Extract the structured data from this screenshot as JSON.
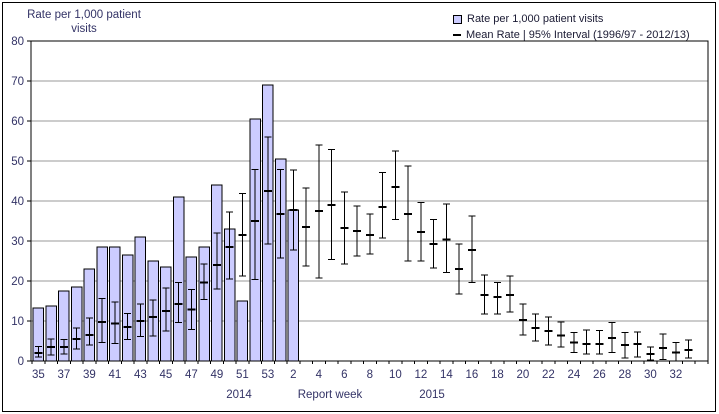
{
  "header": {
    "y_axis_title_line1": "Rate per 1,000  patient",
    "y_axis_title_line2": "visits"
  },
  "legend": {
    "bar_label": "Rate per 1,000 patient visits",
    "mean_label": "Mean Rate | 95% Interval (1996/97 - 2012/13)"
  },
  "x_axis": {
    "title": "Report week",
    "year_left": "2014",
    "year_right": "2015"
  },
  "colors": {
    "bar_fill": "#ccccff",
    "bar_border": "#000000",
    "error_bar": "#000000",
    "grid": "#999999",
    "axis": "#000000",
    "text": "#333366"
  },
  "chart_data": {
    "type": "bar",
    "title": "Rate per 1,000 patient visits",
    "xlabel": "Report week",
    "ylabel": "Rate per 1,000 patient visits",
    "ylim": [
      0,
      80
    ],
    "ytick_step": 10,
    "grid": true,
    "legend_position": "top-right",
    "label_every": 2,
    "series": [
      {
        "name": "Rate per 1,000 patient visits",
        "style": "bar"
      },
      {
        "name": "Mean Rate | 95% Interval (1996/97 - 2012/13)",
        "style": "errorbar"
      }
    ],
    "weeks": [
      {
        "year": 2014,
        "week": 35,
        "rate": 13.3,
        "mean": 2.0,
        "ci_low": 1.0,
        "ci_high": 3.6
      },
      {
        "year": 2014,
        "week": 36,
        "rate": 13.8,
        "mean": 3.5,
        "ci_low": 1.5,
        "ci_high": 5.5
      },
      {
        "year": 2014,
        "week": 37,
        "rate": 17.5,
        "mean": 3.5,
        "ci_low": 1.7,
        "ci_high": 5.4
      },
      {
        "year": 2014,
        "week": 38,
        "rate": 18.5,
        "mean": 5.5,
        "ci_low": 3.0,
        "ci_high": 8.3
      },
      {
        "year": 2014,
        "week": 39,
        "rate": 23.0,
        "mean": 6.5,
        "ci_low": 4.0,
        "ci_high": 10.8
      },
      {
        "year": 2014,
        "week": 40,
        "rate": 28.5,
        "mean": 9.8,
        "ci_low": 4.6,
        "ci_high": 15.6
      },
      {
        "year": 2014,
        "week": 41,
        "rate": 28.5,
        "mean": 9.4,
        "ci_low": 4.4,
        "ci_high": 14.8
      },
      {
        "year": 2014,
        "week": 42,
        "rate": 26.5,
        "mean": 8.5,
        "ci_low": 5.4,
        "ci_high": 11.9
      },
      {
        "year": 2014,
        "week": 43,
        "rate": 31.0,
        "mean": 10.0,
        "ci_low": 6.1,
        "ci_high": 14.2
      },
      {
        "year": 2014,
        "week": 44,
        "rate": 25.0,
        "mean": 11.0,
        "ci_low": 6.3,
        "ci_high": 15.3
      },
      {
        "year": 2014,
        "week": 45,
        "rate": 23.5,
        "mean": 12.5,
        "ci_low": 7.5,
        "ci_high": 18.2
      },
      {
        "year": 2014,
        "week": 46,
        "rate": 41.0,
        "mean": 14.3,
        "ci_low": 9.6,
        "ci_high": 19.6
      },
      {
        "year": 2014,
        "week": 47,
        "rate": 26.0,
        "mean": 12.9,
        "ci_low": 7.9,
        "ci_high": 17.9
      },
      {
        "year": 2014,
        "week": 48,
        "rate": 28.5,
        "mean": 19.6,
        "ci_low": 15.4,
        "ci_high": 24.2
      },
      {
        "year": 2014,
        "week": 49,
        "rate": 44.0,
        "mean": 24.0,
        "ci_low": 18.0,
        "ci_high": 32.0
      },
      {
        "year": 2014,
        "week": 50,
        "rate": 33.0,
        "mean": 28.5,
        "ci_low": 20.5,
        "ci_high": 37.2
      },
      {
        "year": 2014,
        "week": 51,
        "rate": 15.0,
        "mean": 31.5,
        "ci_low": 21.2,
        "ci_high": 41.9
      },
      {
        "year": 2014,
        "week": 52,
        "rate": 60.5,
        "mean": 35.0,
        "ci_low": 20.4,
        "ci_high": 47.9
      },
      {
        "year": 2014,
        "week": 53,
        "rate": 69.0,
        "mean": 42.5,
        "ci_low": 29.3,
        "ci_high": 56.0
      },
      {
        "year": 2015,
        "week": 1,
        "rate": 50.5,
        "mean": 36.7,
        "ci_low": 25.8,
        "ci_high": 47.9
      },
      {
        "year": 2015,
        "week": 2,
        "rate": 37.7,
        "mean": 37.7,
        "ci_low": 27.7,
        "ci_high": 47.8
      },
      {
        "year": 2015,
        "week": 3,
        "rate": null,
        "mean": 33.5,
        "ci_low": 23.8,
        "ci_high": 43.3
      },
      {
        "year": 2015,
        "week": 4,
        "rate": null,
        "mean": 37.5,
        "ci_low": 20.8,
        "ci_high": 54.0
      },
      {
        "year": 2015,
        "week": 5,
        "rate": null,
        "mean": 39.0,
        "ci_low": 25.4,
        "ci_high": 52.9
      },
      {
        "year": 2015,
        "week": 6,
        "rate": null,
        "mean": 33.2,
        "ci_low": 24.2,
        "ci_high": 42.3
      },
      {
        "year": 2015,
        "week": 7,
        "rate": null,
        "mean": 32.5,
        "ci_low": 26.2,
        "ci_high": 38.8
      },
      {
        "year": 2015,
        "week": 8,
        "rate": null,
        "mean": 31.5,
        "ci_low": 26.7,
        "ci_high": 36.7
      },
      {
        "year": 2015,
        "week": 9,
        "rate": null,
        "mean": 38.5,
        "ci_low": 30.8,
        "ci_high": 47.1
      },
      {
        "year": 2015,
        "week": 10,
        "rate": null,
        "mean": 43.5,
        "ci_low": 35.4,
        "ci_high": 52.5
      },
      {
        "year": 2015,
        "week": 11,
        "rate": null,
        "mean": 36.7,
        "ci_low": 25.0,
        "ci_high": 48.8
      },
      {
        "year": 2015,
        "week": 12,
        "rate": null,
        "mean": 32.2,
        "ci_low": 25.0,
        "ci_high": 39.6
      },
      {
        "year": 2015,
        "week": 13,
        "rate": null,
        "mean": 29.3,
        "ci_low": 23.3,
        "ci_high": 35.4
      },
      {
        "year": 2015,
        "week": 14,
        "rate": null,
        "mean": 30.4,
        "ci_low": 22.1,
        "ci_high": 39.2
      },
      {
        "year": 2015,
        "week": 15,
        "rate": null,
        "mean": 23.0,
        "ci_low": 16.7,
        "ci_high": 29.2
      },
      {
        "year": 2015,
        "week": 16,
        "rate": null,
        "mean": 27.8,
        "ci_low": 19.6,
        "ci_high": 36.2
      },
      {
        "year": 2015,
        "week": 17,
        "rate": null,
        "mean": 16.5,
        "ci_low": 11.7,
        "ci_high": 21.5
      },
      {
        "year": 2015,
        "week": 18,
        "rate": null,
        "mean": 16.0,
        "ci_low": 11.7,
        "ci_high": 19.6
      },
      {
        "year": 2015,
        "week": 19,
        "rate": null,
        "mean": 16.5,
        "ci_low": 12.2,
        "ci_high": 21.2
      },
      {
        "year": 2015,
        "week": 20,
        "rate": null,
        "mean": 10.2,
        "ci_low": 6.5,
        "ci_high": 14.2
      },
      {
        "year": 2015,
        "week": 21,
        "rate": null,
        "mean": 8.2,
        "ci_low": 5.0,
        "ci_high": 11.8
      },
      {
        "year": 2015,
        "week": 22,
        "rate": null,
        "mean": 7.5,
        "ci_low": 4.0,
        "ci_high": 11.0
      },
      {
        "year": 2015,
        "week": 23,
        "rate": null,
        "mean": 6.4,
        "ci_low": 3.5,
        "ci_high": 9.8
      },
      {
        "year": 2015,
        "week": 24,
        "rate": null,
        "mean": 4.6,
        "ci_low": 2.1,
        "ci_high": 7.1
      },
      {
        "year": 2015,
        "week": 25,
        "rate": null,
        "mean": 4.3,
        "ci_low": 1.7,
        "ci_high": 7.7
      },
      {
        "year": 2015,
        "week": 26,
        "rate": null,
        "mean": 4.3,
        "ci_low": 1.8,
        "ci_high": 7.6
      },
      {
        "year": 2015,
        "week": 27,
        "rate": null,
        "mean": 5.8,
        "ci_low": 2.1,
        "ci_high": 9.6
      },
      {
        "year": 2015,
        "week": 28,
        "rate": null,
        "mean": 4.0,
        "ci_low": 0.8,
        "ci_high": 7.1
      },
      {
        "year": 2015,
        "week": 29,
        "rate": null,
        "mean": 4.2,
        "ci_low": 1.0,
        "ci_high": 7.3
      },
      {
        "year": 2015,
        "week": 30,
        "rate": null,
        "mean": 1.8,
        "ci_low": 0.3,
        "ci_high": 3.5
      },
      {
        "year": 2015,
        "week": 31,
        "rate": null,
        "mean": 3.3,
        "ci_low": 0.4,
        "ci_high": 6.7
      },
      {
        "year": 2015,
        "week": 32,
        "rate": null,
        "mean": 2.1,
        "ci_low": 0.0,
        "ci_high": 4.6
      },
      {
        "year": 2015,
        "week": 33,
        "rate": null,
        "mean": 2.8,
        "ci_low": 0.8,
        "ci_high": 5.2
      }
    ]
  }
}
